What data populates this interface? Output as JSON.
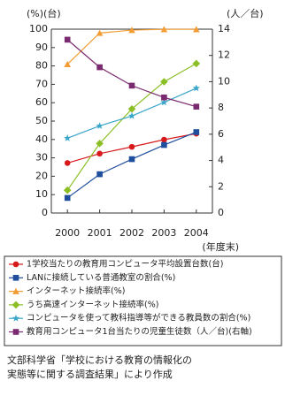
{
  "chart_data": {
    "type": "line",
    "y_axis_label": "(%)(台)",
    "y2_axis_label": "(人／台)",
    "x_axis_label": "(年度末)",
    "categories": [
      "2000",
      "2001",
      "2002",
      "2003",
      "2004"
    ],
    "ylim": [
      0,
      100
    ],
    "yticks": [
      0,
      10,
      20,
      30,
      40,
      50,
      60,
      70,
      80,
      90,
      100
    ],
    "y2lim": [
      0,
      14
    ],
    "y2ticks": [
      0,
      2,
      4,
      6,
      8,
      10,
      12,
      14
    ],
    "series": [
      {
        "name": "1学校当たりの教育用コンピュータ平均設置台数(台)",
        "color": "#d7191c",
        "marker": "circle",
        "values": [
          27.2,
          32.3,
          36.0,
          39.9,
          43.2
        ]
      },
      {
        "name": "LANに接続している普通教室の割合(%)",
        "color": "#1f4e9c",
        "marker": "square",
        "values": [
          8.2,
          21.1,
          29.3,
          37.0,
          44.0
        ]
      },
      {
        "name": "インターネット接続率(%)",
        "color": "#f39c34",
        "marker": "triangle",
        "values": [
          80.9,
          97.9,
          99.5,
          99.9,
          99.9
        ]
      },
      {
        "name": "うち高速インターネット接続率(%)",
        "color": "#8cbf26",
        "marker": "diamond",
        "values": [
          12.4,
          37.8,
          56.6,
          71.4,
          81.3
        ]
      },
      {
        "name": "コンピュータを使って教科指導等ができる教員数の割合(%)",
        "color": "#3aa6c9",
        "marker": "star",
        "values": [
          40.7,
          47.4,
          52.8,
          60.2,
          67.9
        ]
      },
      {
        "name": "教育用コンピュータ1台当たりの児童生徒数（人／台)(右軸)",
        "color": "#7a2a6e",
        "marker": "square",
        "axis": "y2",
        "values": [
          13.2,
          11.1,
          9.7,
          8.8,
          8.1
        ]
      }
    ],
    "footnote": [
      "文部科学省「学校における教育の情報化の",
      "実態等に関する調査結果」により作成"
    ]
  }
}
